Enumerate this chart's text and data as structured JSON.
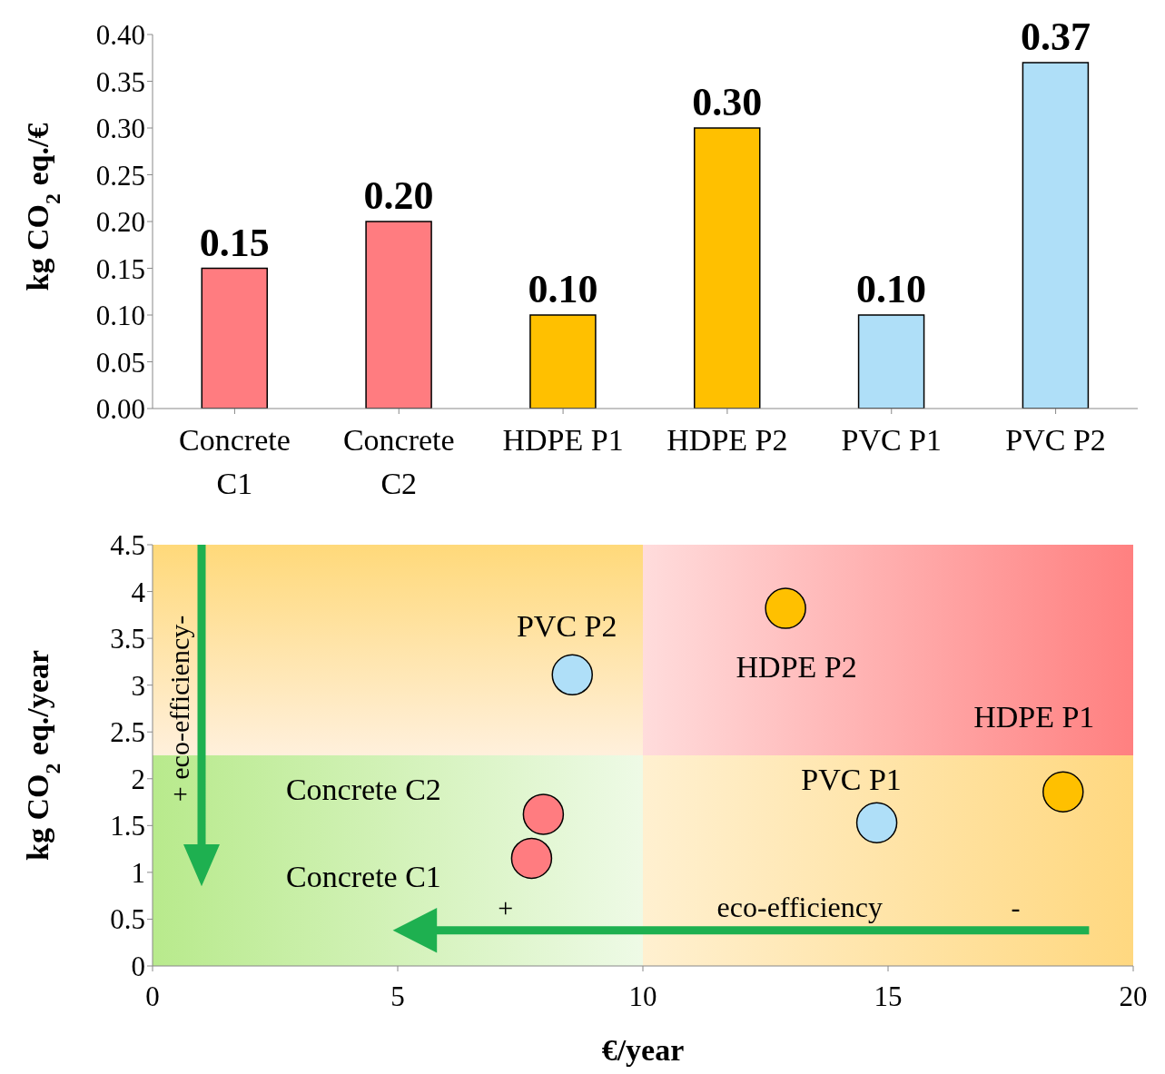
{
  "chart_data": [
    {
      "type": "bar",
      "categories": [
        "Concrete C1",
        "Concrete C2",
        "HDPE P1",
        "HDPE P2",
        "PVC P1",
        "PVC P2"
      ],
      "values": [
        0.15,
        0.2,
        0.1,
        0.3,
        0.1,
        0.37
      ],
      "colors": [
        "#ff7c80",
        "#ff7c80",
        "#ffc000",
        "#ffc000",
        "#afdff8",
        "#afdff8"
      ],
      "ylabel": "kg CO$_{2}$ eq./€",
      "ylim": [
        0,
        0.4
      ],
      "yticks": [
        {
          "value": 0,
          "label": "0.00"
        },
        {
          "value": 0.05,
          "label": "0.05"
        },
        {
          "value": 0.1,
          "label": "0.10"
        },
        {
          "value": 0.15,
          "label": "0.15"
        },
        {
          "value": 0.2,
          "label": "0.20"
        },
        {
          "value": 0.25,
          "label": "0.25"
        },
        {
          "value": 0.3,
          "label": "0.30"
        },
        {
          "value": 0.35,
          "label": "0.35"
        },
        {
          "value": 0.4,
          "label": "0.40"
        }
      ],
      "value_labels": [
        "0.15",
        "0.20",
        "0.10",
        "0.30",
        "0.10",
        "0.37"
      ],
      "grid": false,
      "legend": false
    },
    {
      "type": "scatter",
      "xlabel": "€/year",
      "ylabel": "kg CO$_{2}$ eq./year",
      "xlim": [
        0,
        20
      ],
      "xticks": [
        0,
        5,
        10,
        15,
        20
      ],
      "ylim": [
        0,
        4.5
      ],
      "yticks": [
        0,
        0.5,
        1,
        1.5,
        2,
        2.5,
        3,
        3.5,
        4,
        4.5
      ],
      "series": [
        {
          "name": "PVC P2",
          "color": "#afdff8",
          "x": [
            8.56
          ],
          "values": [
            3.11
          ]
        },
        {
          "name": "HDPE P2",
          "color": "#ffc000",
          "x": [
            12.91
          ],
          "values": [
            3.82
          ]
        },
        {
          "name": "HDPE P1",
          "color": "#ffc000",
          "x": [
            18.57
          ],
          "values": [
            1.86
          ]
        },
        {
          "name": "PVC P1",
          "color": "#afdff8",
          "x": [
            14.77
          ],
          "values": [
            1.53
          ]
        },
        {
          "name": "Concrete C2",
          "color": "#ff7c80",
          "x": [
            7.97
          ],
          "values": [
            1.62
          ]
        },
        {
          "name": "Concrete C1",
          "color": "#ff7c80",
          "x": [
            7.73
          ],
          "values": [
            1.15
          ]
        }
      ],
      "bands": [
        {
          "axis": "x",
          "from": 10,
          "to": 20
        },
        {
          "axis": "y",
          "from": 2.25,
          "to": 4.5
        }
      ],
      "annotations": [
        "+ eco-efficiency-",
        "+",
        "eco-efficiency",
        "-"
      ],
      "grid": false,
      "legend": false
    }
  ]
}
